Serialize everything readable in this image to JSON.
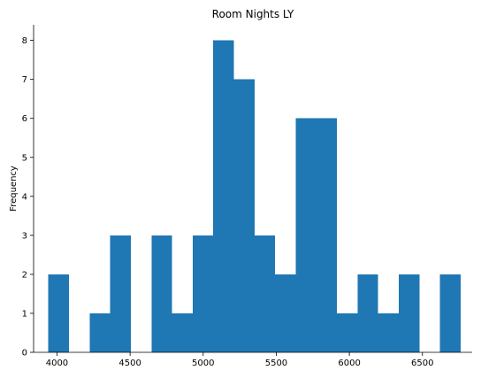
{
  "chart_data": {
    "type": "bar",
    "title": "Room Nights LY",
    "xlabel": "",
    "ylabel": "Frequency",
    "bar_color": "#1f77b4",
    "bin_edges": [
      3941,
      4082,
      4223,
      4364,
      4505,
      4646,
      4787,
      4928,
      5069,
      5210,
      5351,
      5492,
      5633,
      5774,
      5915,
      6056,
      6197,
      6338,
      6479,
      6620,
      6761
    ],
    "values": [
      2,
      0,
      1,
      3,
      0,
      3,
      1,
      3,
      8,
      7,
      3,
      2,
      6,
      6,
      1,
      2,
      1,
      2,
      0,
      2
    ],
    "xlim": [
      3840,
      6840
    ],
    "ylim": [
      0,
      8.4
    ],
    "x_ticks": [
      4000,
      4500,
      5000,
      5500,
      6000,
      6500
    ],
    "y_ticks": [
      0,
      1,
      2,
      3,
      4,
      5,
      6,
      7,
      8
    ],
    "grid": false
  }
}
